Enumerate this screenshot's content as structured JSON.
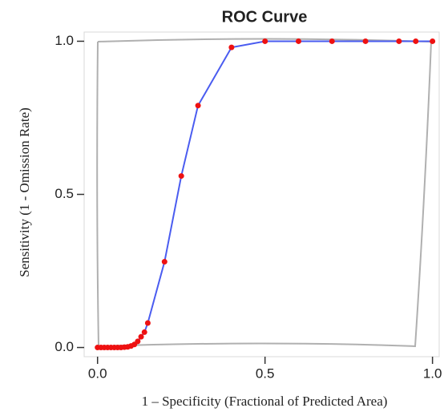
{
  "chart_data": {
    "type": "line",
    "title": "ROC Curve",
    "x_label": "1 – Specificity (Fractional of Predicted Area)",
    "y_label": "Sensitivity (1 -  Omission Rate)",
    "x": [
      0,
      0.01,
      0.02,
      0.03,
      0.04,
      0.05,
      0.06,
      0.07,
      0.08,
      0.09,
      0.1,
      0.11,
      0.12,
      0.13,
      0.14,
      0.15,
      0.2,
      0.25,
      0.3,
      0.4,
      0.5,
      0.6,
      0.7,
      0.8,
      0.9,
      0.95,
      1.0
    ],
    "series": [
      {
        "color": "#4a5cf0",
        "marker_color": "#ee1111",
        "values": [
          0,
          0,
          0,
          0,
          0,
          0,
          0,
          0,
          0.001,
          0.002,
          0.005,
          0.01,
          0.02,
          0.035,
          0.05,
          0.08,
          0.28,
          0.56,
          0.79,
          0.98,
          1,
          1,
          1,
          1,
          1,
          1,
          1
        ]
      }
    ],
    "xlim": [
      -0.04,
      1.02
    ],
    "ylim": [
      -0.03,
      1.03
    ],
    "xticks": [
      {
        "value": 0,
        "label": "0.0"
      },
      0.5,
      {
        "value": 1,
        "label": "1.0"
      }
    ],
    "yticks": [
      {
        "value": 0,
        "label": "0.0"
      },
      0.5,
      {
        "value": 1,
        "label": "1.0"
      }
    ]
  }
}
